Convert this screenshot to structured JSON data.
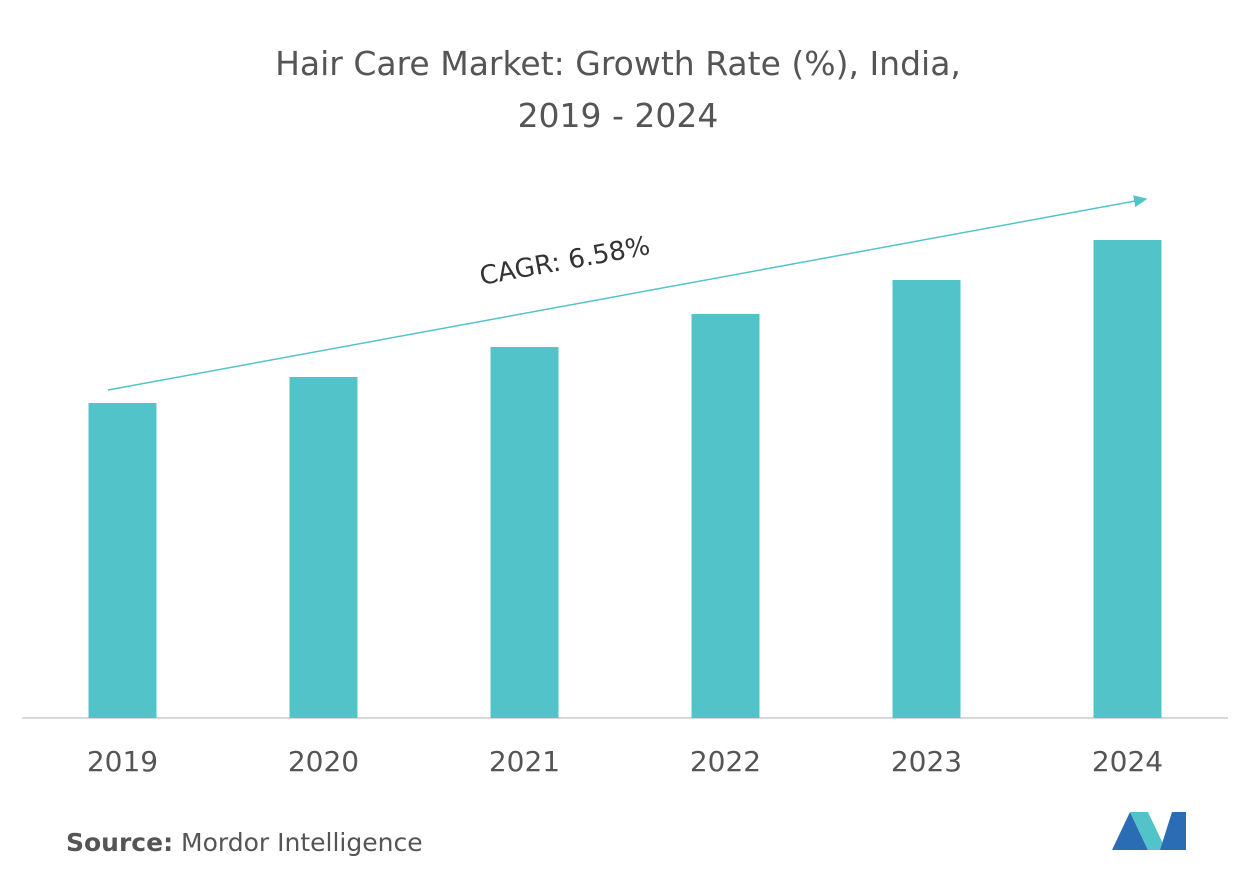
{
  "chart_data": {
    "type": "bar",
    "title": "Hair Care Market: Growth Rate (%), India, 2019 - 2024",
    "categories": [
      "2019",
      "2020",
      "2021",
      "2022",
      "2023",
      "2024"
    ],
    "values": [
      63,
      68.2,
      74.2,
      80.8,
      87.6,
      95.6
    ],
    "color": "#52c4c9",
    "ylim": [
      0,
      100
    ],
    "annotation": "CAGR: 6.58%",
    "source_label": "Source:",
    "source": "Mordor Intelligence"
  }
}
